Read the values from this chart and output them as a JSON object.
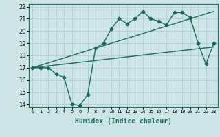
{
  "title": "",
  "xlabel": "Humidex (Indice chaleur)",
  "ylabel": "",
  "bg_color": "#cde5e5",
  "grid_color": "#b0cccc",
  "line_color": "#1a6b5a",
  "xlim": [
    -0.5,
    23.5
  ],
  "ylim": [
    13.8,
    22.2
  ],
  "xticks": [
    0,
    1,
    2,
    3,
    4,
    5,
    6,
    7,
    8,
    9,
    10,
    11,
    12,
    13,
    14,
    15,
    16,
    17,
    18,
    19,
    20,
    21,
    22,
    23
  ],
  "yticks": [
    14,
    15,
    16,
    17,
    18,
    19,
    20,
    21,
    22
  ],
  "series1_x": [
    0,
    1,
    2,
    3,
    4,
    5,
    6,
    7,
    8,
    9,
    10,
    11,
    12,
    13,
    14,
    15,
    16,
    17,
    18,
    19,
    20,
    21,
    22,
    23
  ],
  "series1_y": [
    17.0,
    17.0,
    17.0,
    16.5,
    16.2,
    14.0,
    13.9,
    14.8,
    18.6,
    19.0,
    20.2,
    21.0,
    20.6,
    21.0,
    21.6,
    21.0,
    20.8,
    20.5,
    21.5,
    21.5,
    21.1,
    19.0,
    17.3,
    19.0
  ],
  "series2_x": [
    0,
    23
  ],
  "series2_y": [
    17.0,
    18.7
  ],
  "series3_x": [
    0,
    23
  ],
  "series3_y": [
    17.0,
    21.6
  ],
  "marker": "D",
  "marker_size": 2.5,
  "linewidth": 1.0,
  "xlabel_fontsize": 7,
  "tick_fontsize": 5,
  "ytick_fontsize": 6
}
